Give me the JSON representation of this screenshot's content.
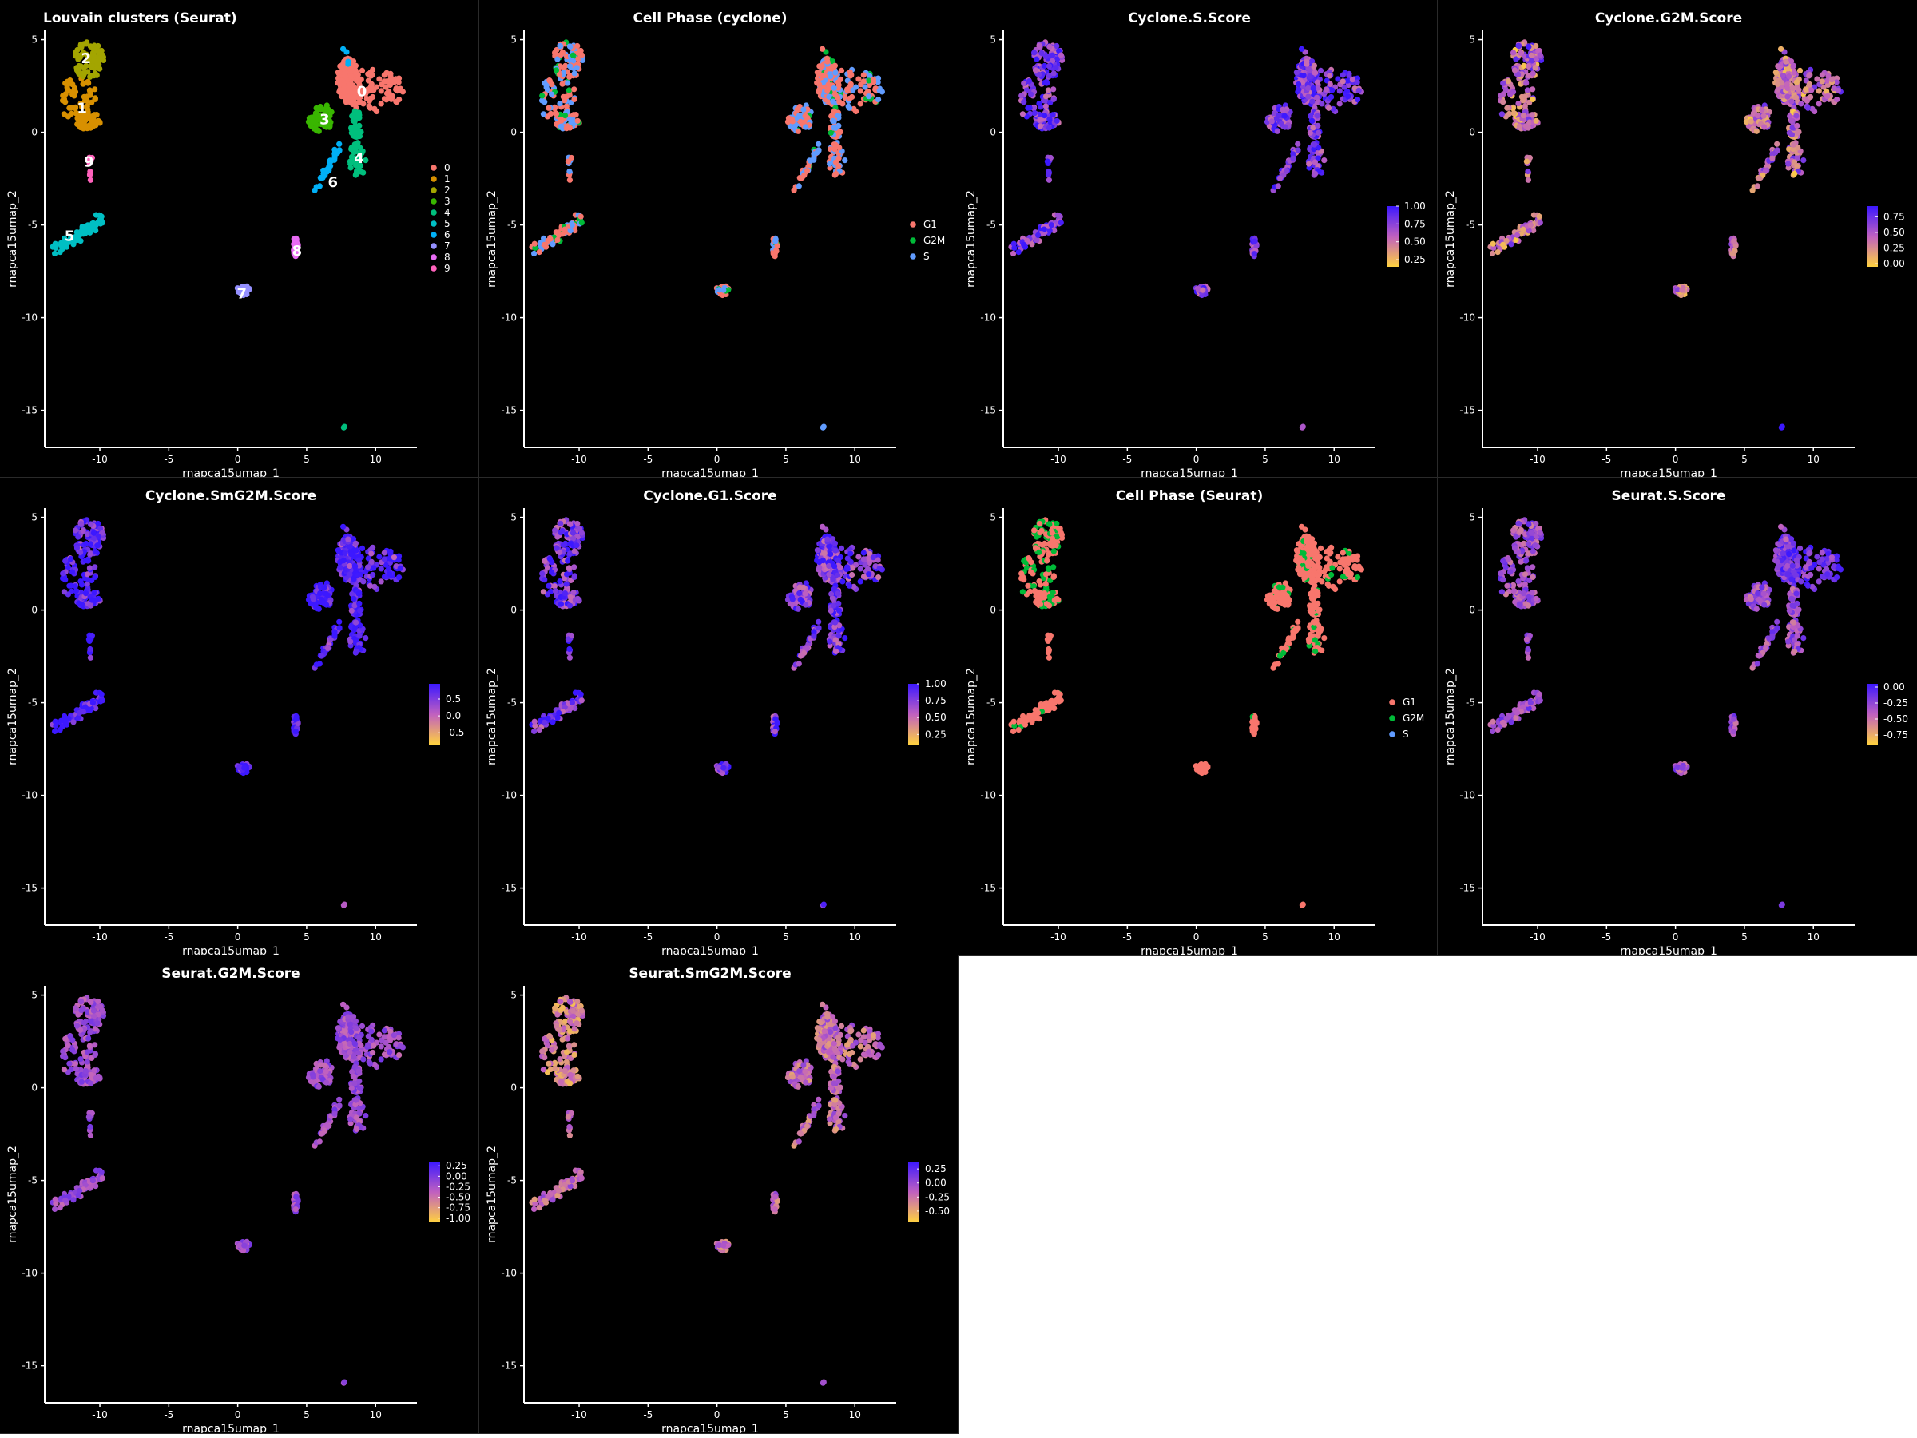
{
  "colors": {
    "background": "#000000",
    "foreground": "#ffffff",
    "score_low": "#ffd23f",
    "score_mid": "#c060c0",
    "score_high": "#3c18ff"
  },
  "chart_data": [
    {
      "type": "scatter",
      "title": "Louvain clusters (Seurat)",
      "title_align": "left",
      "xlabel": "rnapca15umap_1",
      "ylabel": "rnapca15umap_2",
      "xlim": [
        -14,
        13
      ],
      "ylim": [
        -17,
        5.5
      ],
      "x_ticks": [
        -10,
        -5,
        0,
        5,
        10
      ],
      "y_ticks": [
        5,
        0,
        -5,
        -10,
        -15
      ],
      "color_by": "cluster",
      "legend": {
        "kind": "discrete",
        "position": "right",
        "labels": [
          "0",
          "1",
          "2",
          "3",
          "4",
          "5",
          "6",
          "7",
          "8",
          "9"
        ],
        "colors": [
          "#f8766d",
          "#d89000",
          "#a3a500",
          "#39b600",
          "#00bf7d",
          "#00bfc4",
          "#00b0f6",
          "#9590ff",
          "#e76bf3",
          "#ff62bc"
        ]
      },
      "cluster_labels": [
        {
          "text": "0",
          "x": 9.0,
          "y": 2.2
        },
        {
          "text": "1",
          "x": -11.3,
          "y": 1.3
        },
        {
          "text": "2",
          "x": -11.0,
          "y": 4.0
        },
        {
          "text": "3",
          "x": 6.3,
          "y": 0.7
        },
        {
          "text": "4",
          "x": 8.8,
          "y": -1.4
        },
        {
          "text": "5",
          "x": -12.2,
          "y": -5.6
        },
        {
          "text": "6",
          "x": 6.9,
          "y": -2.7
        },
        {
          "text": "7",
          "x": 0.3,
          "y": -8.7
        },
        {
          "text": "8",
          "x": 4.3,
          "y": -6.4
        },
        {
          "text": "9",
          "x": -10.8,
          "y": -1.6
        }
      ]
    },
    {
      "type": "scatter",
      "title": "Cell Phase (cyclone)",
      "title_align": "center",
      "xlabel": "rnapca15umap_1",
      "ylabel": "rnapca15umap_2",
      "xlim": [
        -14,
        13
      ],
      "ylim": [
        -17,
        5.5
      ],
      "x_ticks": [
        -10,
        -5,
        0,
        5,
        10
      ],
      "y_ticks": [
        5,
        0,
        -5,
        -10,
        -15
      ],
      "color_by": "phase_cyclone",
      "legend": {
        "kind": "discrete",
        "position": "right",
        "labels": [
          "G1",
          "G2M",
          "S"
        ],
        "colors": [
          "#f8766d",
          "#00ba38",
          "#619cff"
        ]
      }
    },
    {
      "type": "scatter",
      "title": "Cyclone.S.Score",
      "title_align": "center",
      "xlabel": "rnapca15umap_1",
      "ylabel": "rnapca15umap_2",
      "xlim": [
        -14,
        13
      ],
      "ylim": [
        -17,
        5.5
      ],
      "x_ticks": [
        -10,
        -5,
        0,
        5,
        10
      ],
      "y_ticks": [
        5,
        0,
        -5,
        -10,
        -15
      ],
      "color_by": "cyc_s",
      "legend": {
        "kind": "continuous",
        "position": "right",
        "range": [
          0.15,
          1.0
        ],
        "ticks": [
          "1.00",
          "0.75",
          "0.50",
          "0.25"
        ],
        "tick_values": [
          1.0,
          0.75,
          0.5,
          0.25
        ]
      }
    },
    {
      "type": "scatter",
      "title": "Cyclone.G2M.Score",
      "title_align": "center",
      "xlabel": "rnapca15umap_1",
      "ylabel": "rnapca15umap_2",
      "xlim": [
        -14,
        13
      ],
      "ylim": [
        -17,
        5.5
      ],
      "x_ticks": [
        -10,
        -5,
        0,
        5,
        10
      ],
      "y_ticks": [
        5,
        0,
        -5,
        -10,
        -15
      ],
      "color_by": "cyc_g2m",
      "legend": {
        "kind": "continuous",
        "position": "right",
        "range": [
          -0.05,
          0.92
        ],
        "ticks": [
          "0.75",
          "0.50",
          "0.25",
          "0.00"
        ],
        "tick_values": [
          0.75,
          0.5,
          0.25,
          0.0
        ]
      }
    },
    {
      "type": "scatter",
      "title": "Cyclone.SmG2M.Score",
      "title_align": "center",
      "xlabel": "rnapca15umap_1",
      "ylabel": "rnapca15umap_2",
      "xlim": [
        -14,
        13
      ],
      "ylim": [
        -17,
        5.5
      ],
      "x_ticks": [
        -10,
        -5,
        0,
        5,
        10
      ],
      "y_ticks": [
        5,
        0,
        -5,
        -10,
        -15
      ],
      "color_by": "cyc_smg2m",
      "legend": {
        "kind": "continuous",
        "position": "right",
        "range": [
          -0.85,
          0.95
        ],
        "ticks": [
          "0.5",
          "0.0",
          "-0.5"
        ],
        "tick_values": [
          0.5,
          0.0,
          -0.5
        ]
      }
    },
    {
      "type": "scatter",
      "title": "Cyclone.G1.Score",
      "title_align": "center",
      "xlabel": "rnapca15umap_1",
      "ylabel": "rnapca15umap_2",
      "xlim": [
        -14,
        13
      ],
      "ylim": [
        -17,
        5.5
      ],
      "x_ticks": [
        -10,
        -5,
        0,
        5,
        10
      ],
      "y_ticks": [
        5,
        0,
        -5,
        -10,
        -15
      ],
      "color_by": "cyc_g1",
      "legend": {
        "kind": "continuous",
        "position": "right",
        "range": [
          0.1,
          1.0
        ],
        "ticks": [
          "1.00",
          "0.75",
          "0.50",
          "0.25"
        ],
        "tick_values": [
          1.0,
          0.75,
          0.5,
          0.25
        ]
      }
    },
    {
      "type": "scatter",
      "title": "Cell Phase (Seurat)",
      "title_align": "center",
      "xlabel": "rnapca15umap_1",
      "ylabel": "rnapca15umap_2",
      "xlim": [
        -14,
        13
      ],
      "ylim": [
        -17,
        5.5
      ],
      "x_ticks": [
        -10,
        -5,
        0,
        5,
        10
      ],
      "y_ticks": [
        5,
        0,
        -5,
        -10,
        -15
      ],
      "color_by": "phase_seurat",
      "legend": {
        "kind": "discrete",
        "position": "right",
        "labels": [
          "G1",
          "G2M",
          "S"
        ],
        "colors": [
          "#f8766d",
          "#00ba38",
          "#619cff"
        ]
      }
    },
    {
      "type": "scatter",
      "title": "Seurat.S.Score",
      "title_align": "center",
      "xlabel": "rnapca15umap_1",
      "ylabel": "rnapca15umap_2",
      "xlim": [
        -14,
        13
      ],
      "ylim": [
        -17,
        5.5
      ],
      "x_ticks": [
        -10,
        -5,
        0,
        5,
        10
      ],
      "y_ticks": [
        5,
        0,
        -5,
        -10,
        -15
      ],
      "color_by": "seu_s",
      "legend": {
        "kind": "continuous",
        "position": "right",
        "range": [
          -0.9,
          0.05
        ],
        "ticks": [
          "0.00",
          "-0.25",
          "-0.50",
          "-0.75"
        ],
        "tick_values": [
          0.0,
          -0.25,
          -0.5,
          -0.75
        ]
      }
    },
    {
      "type": "scatter",
      "title": "Seurat.G2M.Score",
      "title_align": "center",
      "xlabel": "rnapca15umap_1",
      "ylabel": "rnapca15umap_2",
      "xlim": [
        -14,
        13
      ],
      "ylim": [
        -17,
        5.5
      ],
      "x_ticks": [
        -10,
        -5,
        0,
        5,
        10
      ],
      "y_ticks": [
        5,
        0,
        -5,
        -10,
        -15
      ],
      "color_by": "seu_g2m",
      "legend": {
        "kind": "continuous",
        "position": "right",
        "range": [
          -1.1,
          0.35
        ],
        "ticks": [
          "0.25",
          "0.00",
          "-0.25",
          "-0.50",
          "-0.75",
          "-1.00"
        ],
        "tick_values": [
          0.25,
          0.0,
          -0.25,
          -0.5,
          -0.75,
          -1.0
        ]
      }
    },
    {
      "type": "scatter",
      "title": "Seurat.SmG2M.Score",
      "title_align": "center",
      "xlabel": "rnapca15umap_1",
      "ylabel": "rnapca15umap_2",
      "xlim": [
        -14,
        13
      ],
      "ylim": [
        -17,
        5.5
      ],
      "x_ticks": [
        -10,
        -5,
        0,
        5,
        10
      ],
      "y_ticks": [
        5,
        0,
        -5,
        -10,
        -15
      ],
      "color_by": "seu_smg2m",
      "legend": {
        "kind": "continuous",
        "position": "right",
        "range": [
          -0.7,
          0.38
        ],
        "ticks": [
          "0.25",
          "0.00",
          "-0.25",
          "-0.50"
        ],
        "tick_values": [
          0.25,
          0.0,
          -0.25,
          -0.5
        ]
      }
    }
  ],
  "umap_regions": [
    {
      "cluster": 0,
      "n": 220,
      "ellipses": [
        {
          "cx": 9.8,
          "cy": 2.3,
          "rx": 2.2,
          "ry": 1.2
        },
        {
          "cx": 8.0,
          "cy": 2.8,
          "rx": 0.8,
          "ry": 1.2
        }
      ],
      "g2m_bias": 0.35
    },
    {
      "cluster": 1,
      "n": 110,
      "ellipses": [
        {
          "cx": -11.5,
          "cy": 1.8,
          "rx": 1.4,
          "ry": 1.4
        },
        {
          "cx": -10.8,
          "cy": 0.6,
          "rx": 0.9,
          "ry": 0.5
        }
      ],
      "g2m_bias": 0.25
    },
    {
      "cluster": 2,
      "n": 85,
      "ellipses": [
        {
          "cx": -10.8,
          "cy": 3.9,
          "rx": 1.1,
          "ry": 1.0
        }
      ],
      "g2m_bias": 0.45
    },
    {
      "cluster": 3,
      "n": 55,
      "ellipses": [
        {
          "cx": 6.0,
          "cy": 0.8,
          "rx": 0.9,
          "ry": 0.8
        }
      ],
      "g2m_bias": 0.15
    },
    {
      "cluster": 4,
      "n": 85,
      "ellipses": [
        {
          "cx": 8.7,
          "cy": -1.5,
          "rx": 0.6,
          "ry": 1.0
        },
        {
          "cx": 8.6,
          "cy": 0.4,
          "rx": 0.4,
          "ry": 0.8
        }
      ],
      "g2m_bias": 0.3
    },
    {
      "cluster": 5,
      "n": 75,
      "line": [
        [
          -13.2,
          -6.3
        ],
        [
          -9.8,
          -4.7
        ]
      ],
      "width": 0.35,
      "g2m_bias": 0.2
    },
    {
      "cluster": 6,
      "n": 40,
      "line": [
        [
          5.6,
          -3.2
        ],
        [
          7.5,
          -0.6
        ]
      ],
      "width": 0.2,
      "extra": [
        {
          "cx": 7.8,
          "cy": 4.0,
          "rx": 0.25,
          "ry": 0.2
        }
      ],
      "g2m_bias": 0.3
    },
    {
      "cluster": 7,
      "n": 32,
      "ellipses": [
        {
          "cx": 0.4,
          "cy": -8.5,
          "rx": 0.45,
          "ry": 0.3
        }
      ],
      "g2m_bias": 0.2
    },
    {
      "cluster": 8,
      "n": 22,
      "ellipses": [
        {
          "cx": 4.2,
          "cy": -6.2,
          "rx": 0.2,
          "ry": 0.55
        }
      ],
      "g2m_bias": 0.2
    },
    {
      "cluster": 9,
      "n": 10,
      "line": [
        [
          -10.8,
          -1.3
        ],
        [
          -10.7,
          -2.6
        ]
      ],
      "width": 0.12,
      "g2m_bias": 0.2
    },
    {
      "cluster": 4,
      "n": 2,
      "ellipses": [
        {
          "cx": 7.7,
          "cy": -15.9,
          "rx": 0.05,
          "ry": 0.05
        }
      ],
      "g2m_bias": 0.9
    }
  ]
}
